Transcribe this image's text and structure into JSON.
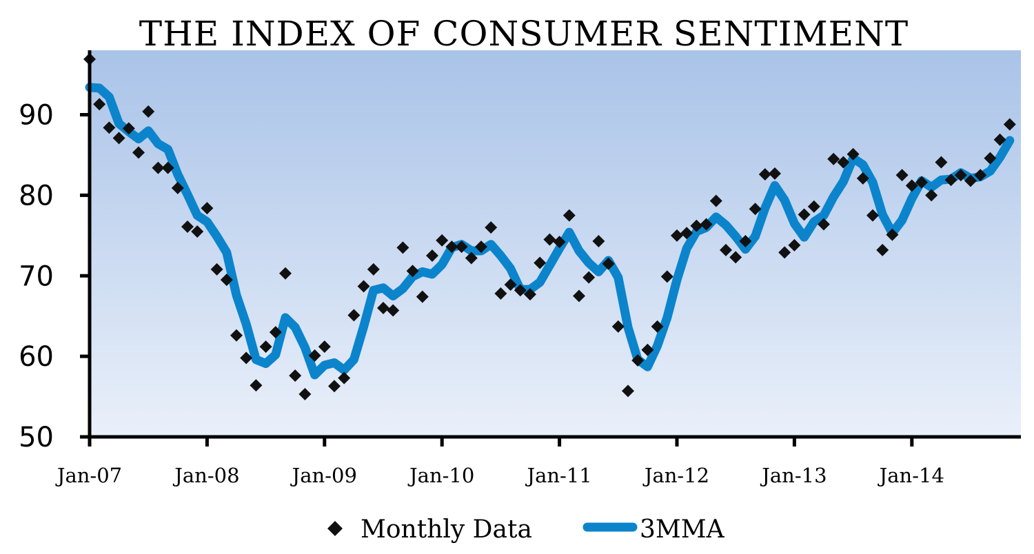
{
  "chart_data": {
    "type": "line",
    "title": "THE INDEX OF CONSUMER SENTIMENT",
    "xlabel": "",
    "ylabel": "",
    "ylim": [
      50,
      98
    ],
    "y_ticks": [
      "50",
      "60",
      "70",
      "80",
      "90"
    ],
    "x_ticks": [
      "Jan-07",
      "Jan-08",
      "Jan-09",
      "Jan-10",
      "Jan-11",
      "Jan-12",
      "Jan-13",
      "Jan-14"
    ],
    "x_start": "Jan-07",
    "grid": false,
    "legend_position": "bottom",
    "background": {
      "top": "#a9c3e8",
      "bottom": "#eaf0fa"
    },
    "series": [
      {
        "name": "Monthly Data",
        "marker": "diamond",
        "color": "#111111",
        "values": [
          96.9,
          91.3,
          88.4,
          87.1,
          88.3,
          85.3,
          90.4,
          83.4,
          83.4,
          80.9,
          76.1,
          75.5,
          78.4,
          70.8,
          69.5,
          62.6,
          59.8,
          56.4,
          61.2,
          63.0,
          70.3,
          57.6,
          55.3,
          60.1,
          61.2,
          56.3,
          57.3,
          65.1,
          68.7,
          70.8,
          66.0,
          65.7,
          73.5,
          70.6,
          67.4,
          72.5,
          74.4,
          73.6,
          73.6,
          72.2,
          73.6,
          76.0,
          67.8,
          68.9,
          68.2,
          67.7,
          71.6,
          74.5,
          74.2,
          77.5,
          67.5,
          69.8,
          74.3,
          71.5,
          63.7,
          55.7,
          59.5,
          60.8,
          63.7,
          69.9,
          75.0,
          75.3,
          76.2,
          76.4,
          79.3,
          73.2,
          72.3,
          74.3,
          78.3,
          82.6,
          82.7,
          72.9,
          73.8,
          77.6,
          78.6,
          76.4,
          84.5,
          84.1,
          85.1,
          82.1,
          77.5,
          73.2,
          75.1,
          82.5,
          81.2,
          81.6,
          80.0,
          84.1,
          81.9,
          82.5,
          81.8,
          82.5,
          84.6,
          86.9,
          88.8
        ]
      },
      {
        "name": "3MMA",
        "marker": "line",
        "color": "#0b84cc",
        "values": [
          93.4,
          93.3,
          92.2,
          88.9,
          87.9,
          87.0,
          88.0,
          86.4,
          85.7,
          82.6,
          80.1,
          77.5,
          76.7,
          74.9,
          72.9,
          67.6,
          64.0,
          59.6,
          59.1,
          60.2,
          64.8,
          63.6,
          61.1,
          57.7,
          58.9,
          59.2,
          58.3,
          59.6,
          63.7,
          68.2,
          68.5,
          67.5,
          68.4,
          69.9,
          70.5,
          70.2,
          71.4,
          73.5,
          73.9,
          73.1,
          73.1,
          73.9,
          72.5,
          70.9,
          68.3,
          68.3,
          69.2,
          71.3,
          73.4,
          75.4,
          73.1,
          71.6,
          70.5,
          71.9,
          69.8,
          63.6,
          59.6,
          58.7,
          61.3,
          64.8,
          69.5,
          73.4,
          75.5,
          76.0,
          77.3,
          76.3,
          74.9,
          73.3,
          74.9,
          78.4,
          81.2,
          79.4,
          76.5,
          74.8,
          76.7,
          77.5,
          79.8,
          81.7,
          84.6,
          83.8,
          81.6,
          77.6,
          75.3,
          76.9,
          79.6,
          81.8,
          81.0,
          81.9,
          82.0,
          82.8,
          82.1,
          82.3,
          83.0,
          84.7,
          86.8
        ]
      }
    ]
  }
}
